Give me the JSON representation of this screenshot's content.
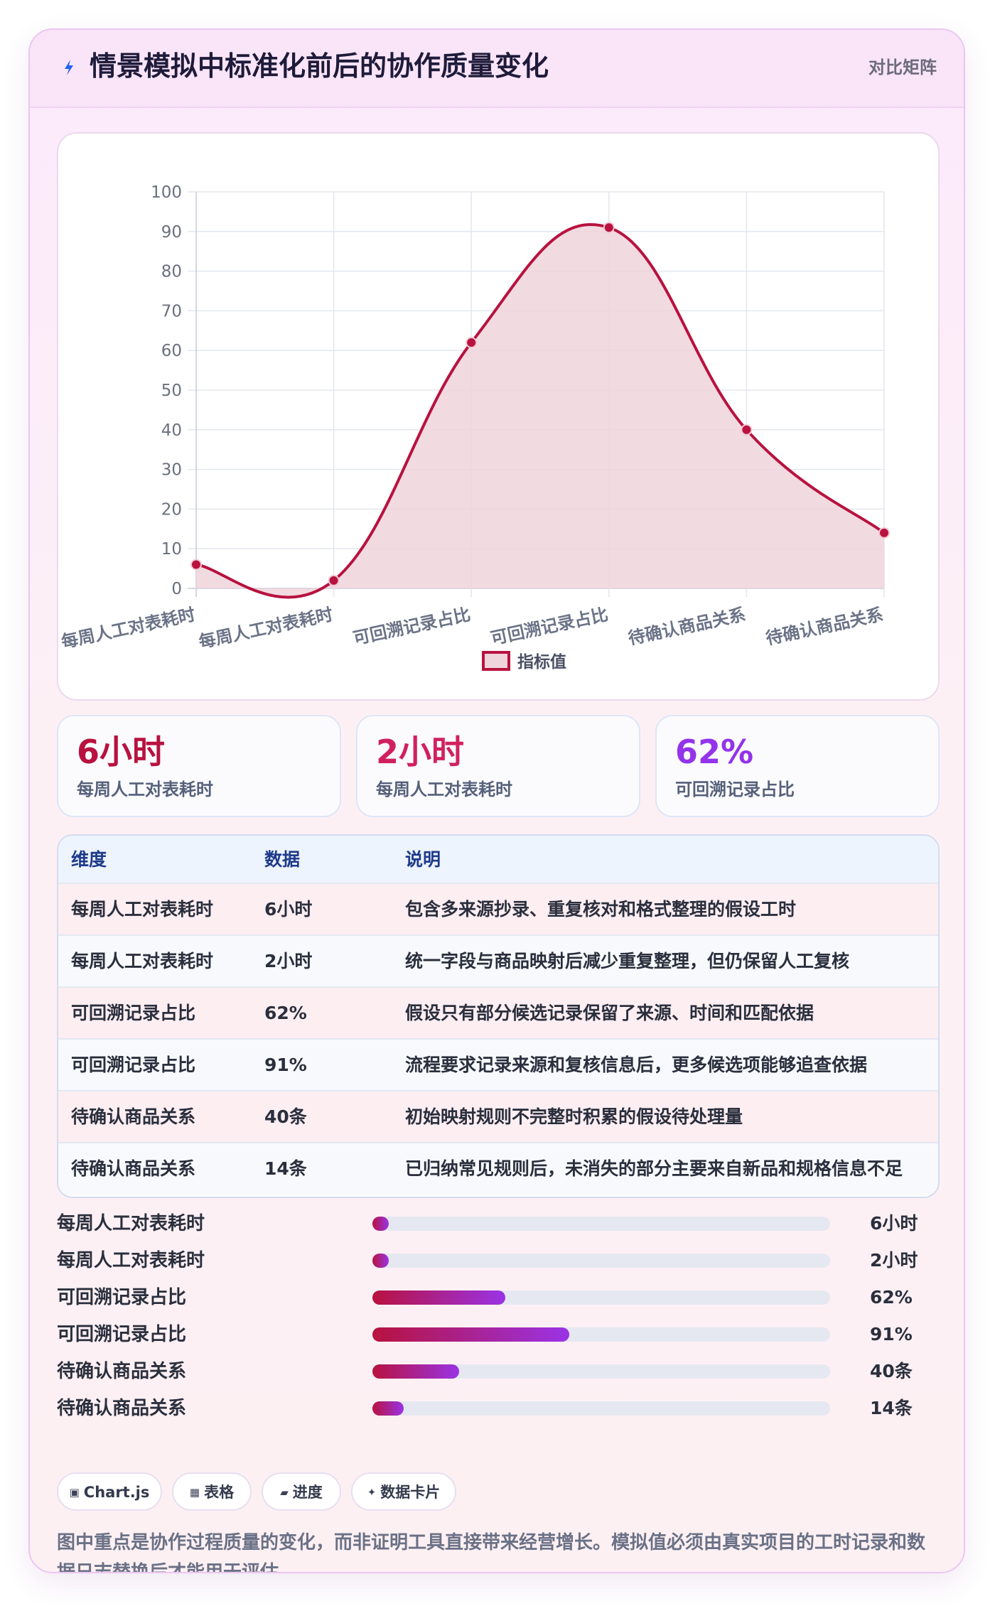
{
  "header": {
    "title": "情景模拟中标准化前后的协作质量变化",
    "tag": "对比矩阵",
    "icon": "lightning-icon"
  },
  "chart_data": {
    "type": "area",
    "categories": [
      "每周人工对表耗时",
      "每周人工对表耗时",
      "可回溯记录占比",
      "可回溯记录占比",
      "待确认商品关系",
      "待确认商品关系"
    ],
    "series": [
      {
        "name": "指标值",
        "values": [
          6,
          2,
          62,
          91,
          40,
          14
        ],
        "color": "#b8123f",
        "fill": "#f0d4dc"
      }
    ],
    "yticks": [
      "0",
      "10",
      "20",
      "30",
      "40",
      "50",
      "60",
      "70",
      "80",
      "90",
      "100"
    ],
    "ylim": [
      0,
      100
    ],
    "title": "",
    "xlabel": "",
    "ylabel": "",
    "grid": true,
    "legend": "bottom"
  },
  "stats": [
    {
      "value": "6小时",
      "label": "每周人工对表耗时",
      "color": "#b8123f"
    },
    {
      "value": "2小时",
      "label": "每周人工对表耗时",
      "color": "#d0215e"
    },
    {
      "value": "62%",
      "label": "可回溯记录占比",
      "color": "#9333ea"
    }
  ],
  "table": {
    "headers": [
      "维度",
      "数据",
      "说明"
    ],
    "rows": [
      [
        "每周人工对表耗时",
        "6小时",
        "包含多来源抄录、重复核对和格式整理的假设工时"
      ],
      [
        "每周人工对表耗时",
        "2小时",
        "统一字段与商品映射后减少重复整理，但仍保留人工复核"
      ],
      [
        "可回溯记录占比",
        "62%",
        "假设只有部分候选记录保留了来源、时间和匹配依据"
      ],
      [
        "可回溯记录占比",
        "91%",
        "流程要求记录来源和复核信息后，更多候选项能够追查依据"
      ],
      [
        "待确认商品关系",
        "40条",
        "初始映射规则不完整时积累的假设待处理量"
      ],
      [
        "待确认商品关系",
        "14条",
        "已归纳常见规则后，未消失的部分主要来自新品和规格信息不足"
      ]
    ]
  },
  "progress": [
    {
      "label": "每周人工对表耗时",
      "value": "6小时",
      "fraction": 0.036
    },
    {
      "label": "每周人工对表耗时",
      "value": "2小时",
      "fraction": 0.036
    },
    {
      "label": "可回溯记录占比",
      "value": "62%",
      "fraction": 0.29
    },
    {
      "label": "可回溯记录占比",
      "value": "91%",
      "fraction": 0.43
    },
    {
      "label": "待确认商品关系",
      "value": "40条",
      "fraction": 0.19
    },
    {
      "label": "待确认商品关系",
      "value": "14条",
      "fraction": 0.068
    }
  ],
  "chips": [
    {
      "icon": "▣",
      "label": "Chart.js"
    },
    {
      "icon": "▦",
      "label": "表格"
    },
    {
      "icon": "▰",
      "label": "进度"
    },
    {
      "icon": "✦",
      "label": "数据卡片"
    }
  ],
  "footnote": "图中重点是协作过程质量的变化，而非证明工具直接带来经营增长。模拟值必须由真实项目的工时记录和数据日志替换后才能用于评估。"
}
